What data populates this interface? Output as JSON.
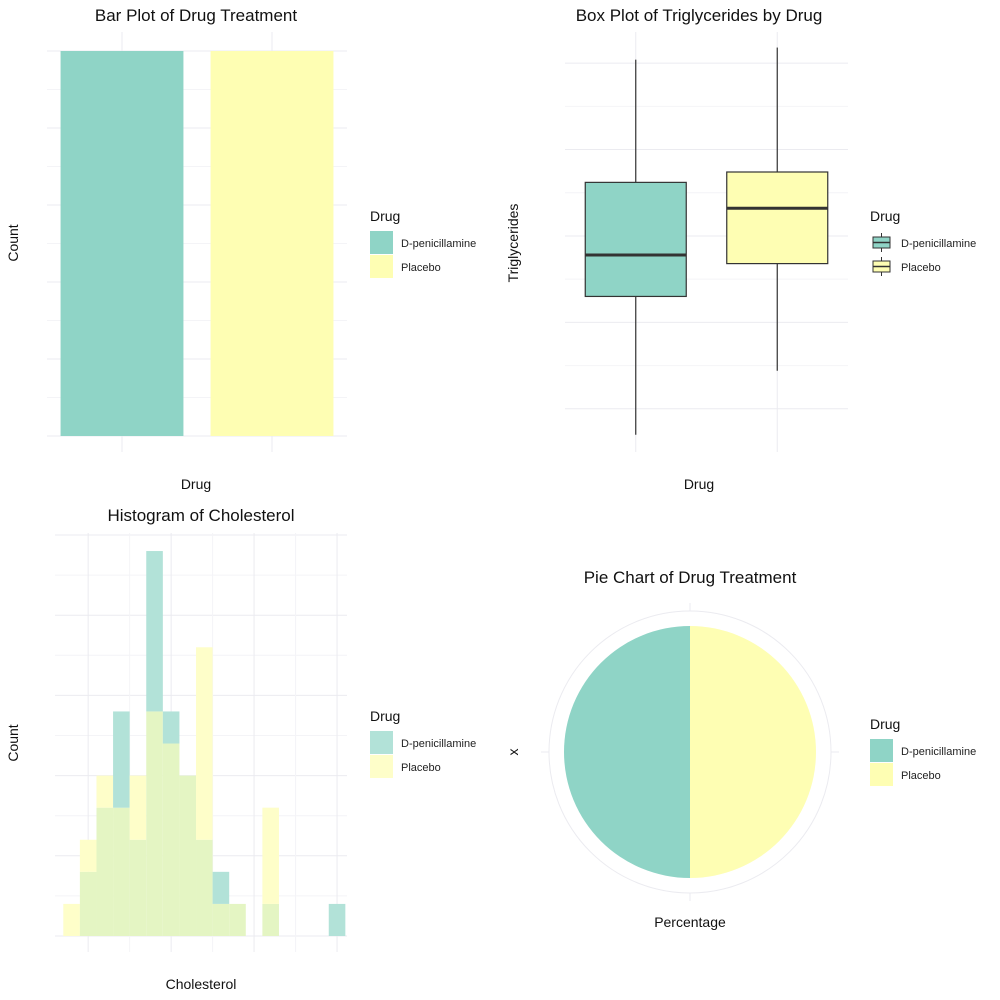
{
  "colors": {
    "dpen": "#8fd4c6",
    "placebo": "#fefeb3",
    "box_line": "#333333",
    "hist_dpen": "#b2e2d8",
    "hist_placebo": "#fefec9",
    "hist_overlap": "#e4f5c3"
  },
  "chart_data": [
    {
      "type": "bar",
      "title": "Bar Plot of Drug Treatment",
      "xlabel": "Drug",
      "ylabel": "Count",
      "categories": [
        "D-penicillamine",
        "Placebo"
      ],
      "values": [
        50,
        50
      ],
      "ylim": [
        0,
        50
      ],
      "yticks": [
        0,
        10,
        20,
        30,
        40,
        50
      ],
      "legend": {
        "title": "Drug",
        "position": "right",
        "entries": [
          "D-penicillamine",
          "Placebo"
        ]
      }
    },
    {
      "type": "box",
      "title": "Box Plot of Triglycerides by Drug",
      "xlabel": "Drug",
      "ylabel": "Triglycerides",
      "categories": [
        "D-penicillamine",
        "Placebo"
      ],
      "boxes": [
        {
          "min": 35,
          "q1": 115,
          "median": 139,
          "q3": 181,
          "max": 252
        },
        {
          "min": 72,
          "q1": 134,
          "median": 166,
          "q3": 187,
          "max": 259
        }
      ],
      "ylim": [
        25,
        268
      ],
      "yticks": [
        50,
        100,
        150,
        200,
        250
      ],
      "legend": {
        "title": "Drug",
        "position": "right",
        "entries": [
          "D-penicillamine",
          "Placebo"
        ]
      }
    },
    {
      "type": "histogram",
      "title": "Histogram of Cholesterol",
      "xlabel": "Cholesterol",
      "ylabel": "Count",
      "bin_width": 10,
      "bin_starts": [
        135,
        145,
        155,
        165,
        175,
        185,
        195,
        205,
        215,
        225,
        235,
        245,
        255,
        265,
        275,
        285,
        295
      ],
      "series": [
        {
          "name": "D-penicillamine",
          "values": [
            0,
            2,
            4,
            7,
            3,
            12,
            7,
            5,
            3,
            2,
            1,
            0,
            1,
            0,
            0,
            0,
            1
          ]
        },
        {
          "name": "Placebo",
          "values": [
            1,
            3,
            5,
            4,
            5,
            7,
            6,
            5,
            9,
            1,
            1,
            0,
            4,
            0,
            0,
            0,
            0
          ]
        }
      ],
      "xlim": [
        130,
        306
      ],
      "ylim": [
        0,
        12.5
      ],
      "xticks": [
        150,
        200,
        250,
        300
      ],
      "yticks": [
        0.0,
        2.5,
        5.0,
        7.5,
        10.0,
        12.5
      ],
      "ytick_labels": [
        "0.0",
        "2.5",
        "5.0",
        "7.5",
        "10.0",
        "12.5"
      ],
      "legend": {
        "title": "Drug",
        "position": "right",
        "entries": [
          "D-penicillamine",
          "Placebo"
        ]
      }
    },
    {
      "type": "pie",
      "title": "Pie Chart of Drug Treatment",
      "xlabel": "Percentage",
      "ylabel": "x",
      "categories": [
        "D-penicillamine",
        "Placebo"
      ],
      "values": [
        50,
        50
      ],
      "legend": {
        "title": "Drug",
        "position": "right",
        "entries": [
          "D-penicillamine",
          "Placebo"
        ]
      }
    }
  ]
}
